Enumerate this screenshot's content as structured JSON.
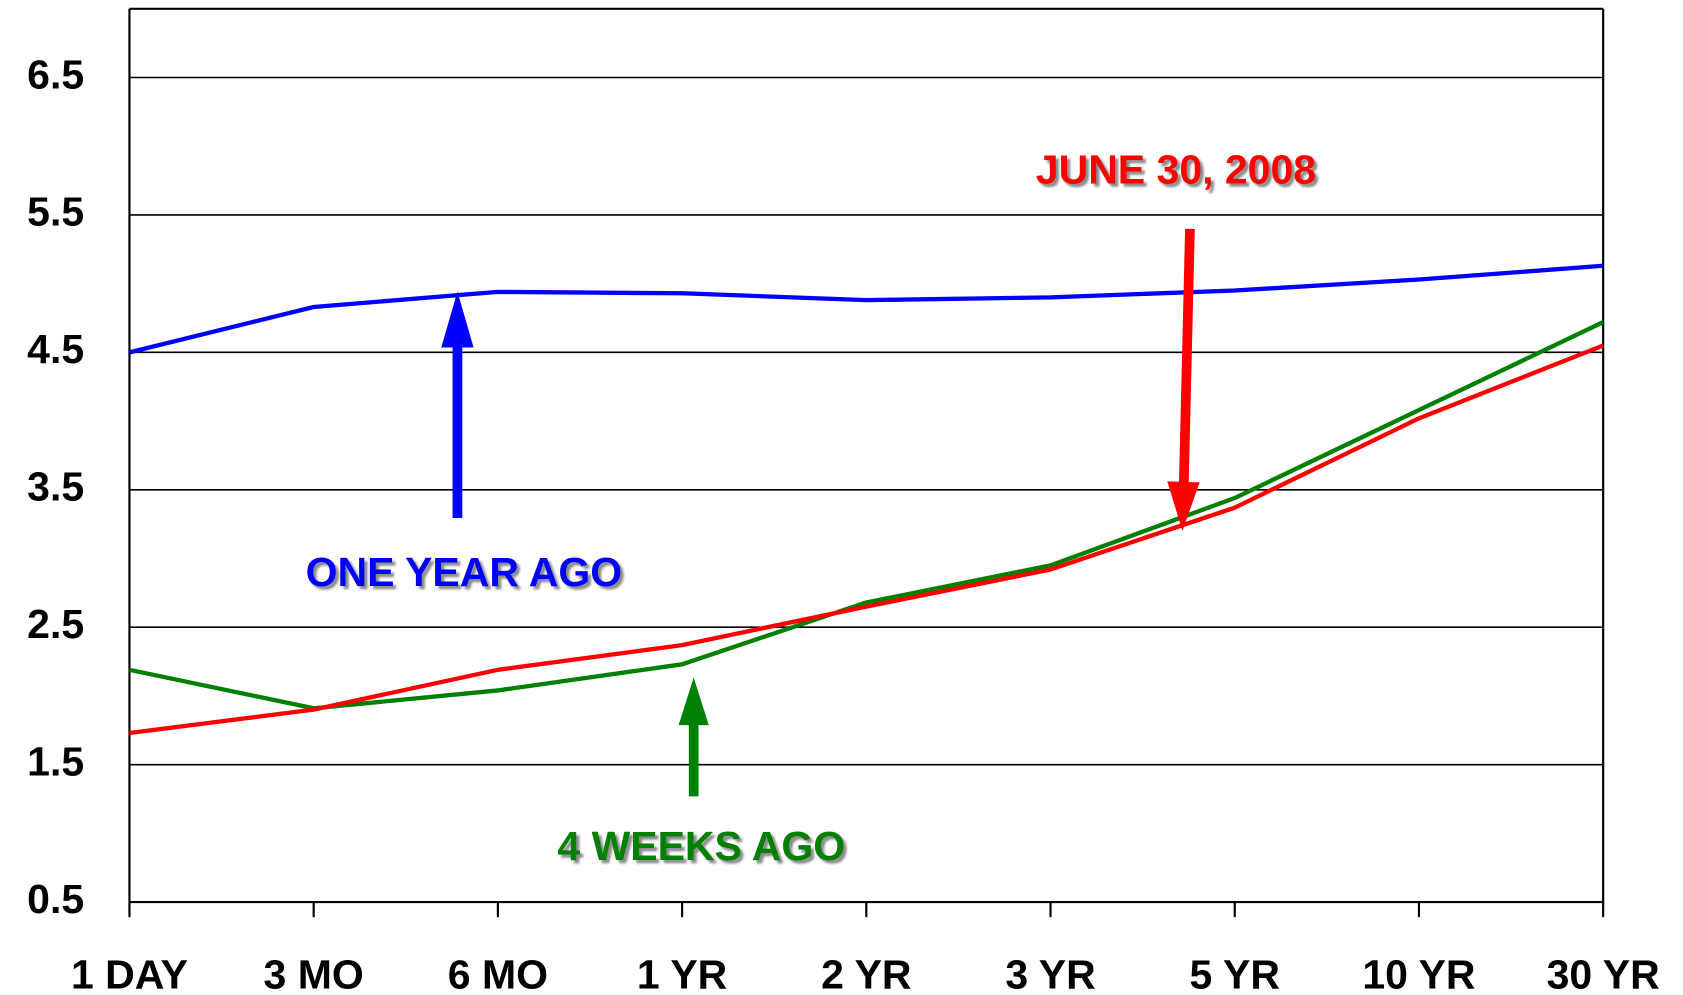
{
  "chart_data": {
    "type": "line",
    "categories": [
      "1 DAY",
      "3 MO",
      "6 MO",
      "1 YR",
      "2 YR",
      "3 YR",
      "5 YR",
      "10 YR",
      "30 YR"
    ],
    "series": [
      {
        "name": "ONE YEAR  AGO",
        "color": "#0000ff",
        "values": [
          4.5,
          4.83,
          4.94,
          4.93,
          4.88,
          4.9,
          4.95,
          5.03,
          5.13
        ]
      },
      {
        "name": "4 WEEKS AGO",
        "color": "#008000",
        "values": [
          2.19,
          1.91,
          2.04,
          2.23,
          2.68,
          2.95,
          3.44,
          4.08,
          4.72
        ]
      },
      {
        "name": "JUNE 30, 2008",
        "color": "#ff0000",
        "values": [
          1.73,
          1.9,
          2.19,
          2.37,
          2.65,
          2.92,
          3.37,
          4.02,
          4.55
        ]
      }
    ],
    "ylim": [
      0.5,
      7.0
    ],
    "yticks": [
      0.5,
      1.5,
      2.5,
      3.5,
      4.5,
      5.5,
      6.5
    ],
    "grid": true
  }
}
